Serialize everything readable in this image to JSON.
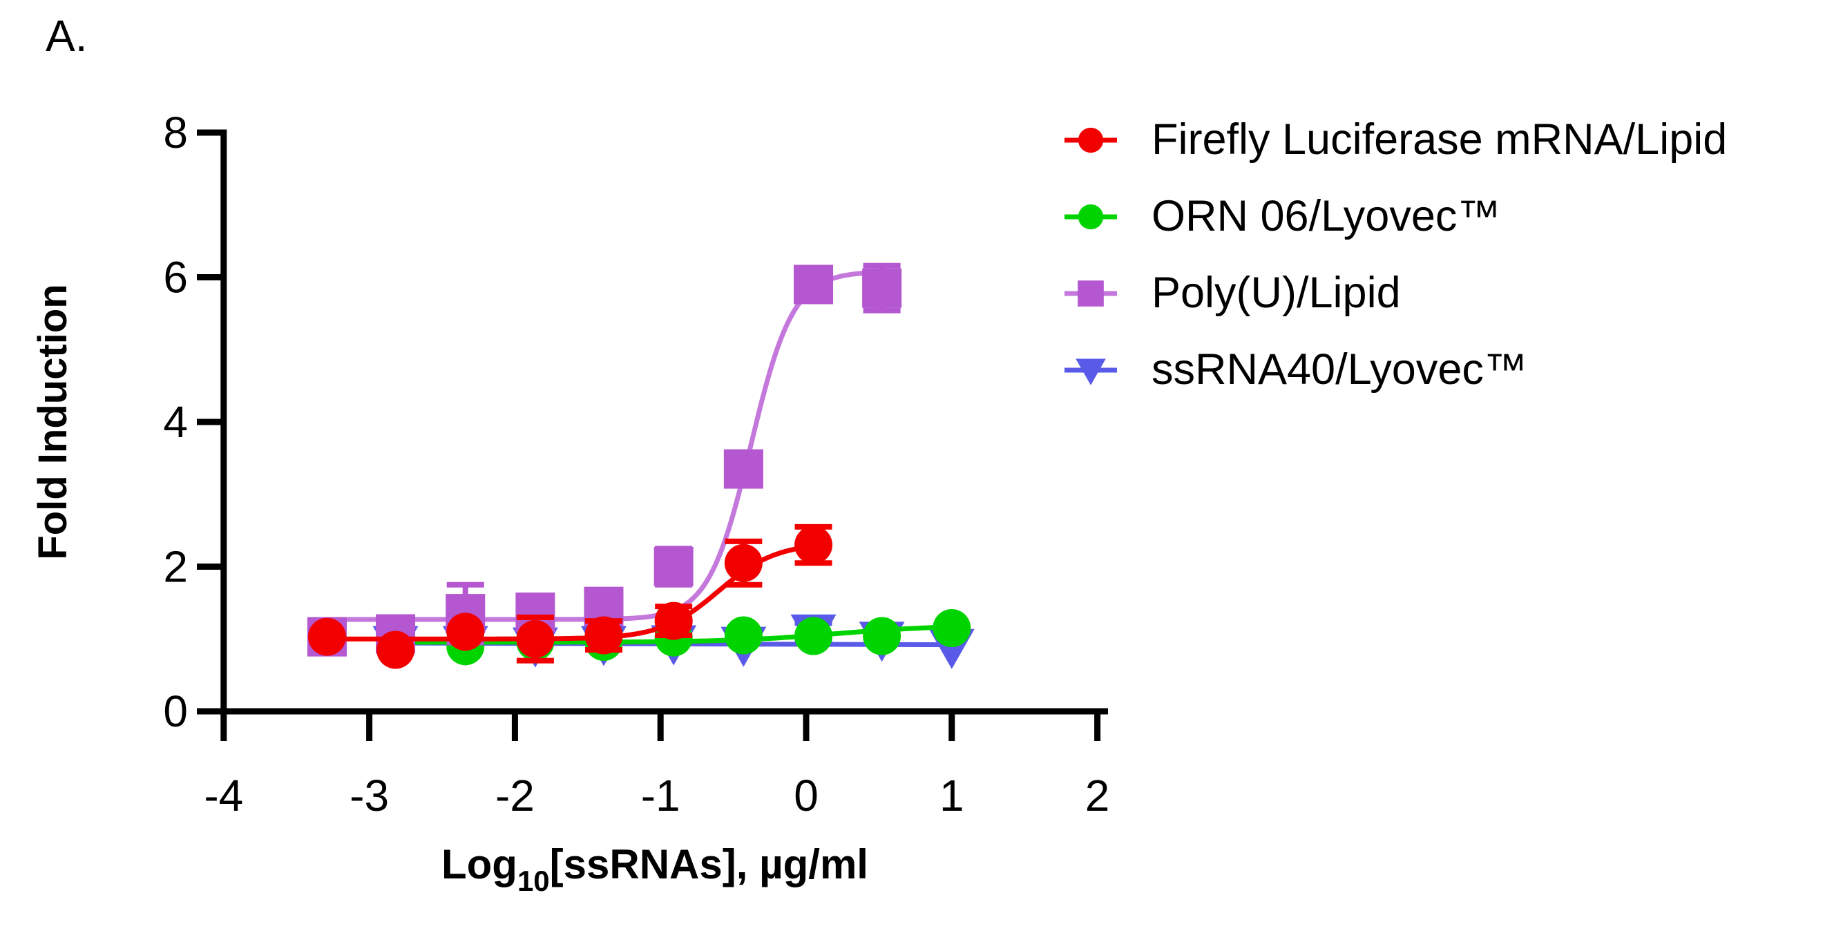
{
  "panel_label": "A.",
  "chart_data": {
    "type": "scatter",
    "title": "",
    "ylabel": "Fold Induction",
    "xlabel_parts": {
      "pre": "Log",
      "sub": "10",
      "post": "[ssRNAs], µg/ml"
    },
    "xlim": [
      -4,
      2
    ],
    "ylim": [
      0,
      8
    ],
    "xticks": [
      -4,
      -3,
      -2,
      -1,
      0,
      1,
      2
    ],
    "yticks": [
      0,
      2,
      4,
      6,
      8
    ],
    "grid": false,
    "legend_position": "right",
    "axis_color": "#000000",
    "background_color": "#ffffff",
    "series": [
      {
        "name": "Firefly Luciferase mRNA/Lipid",
        "marker": "circle",
        "color": "#f20000",
        "z": 4,
        "x": [
          -3.29,
          -2.82,
          -2.34,
          -1.86,
          -1.39,
          -0.91,
          -0.43,
          0.05
        ],
        "y": [
          1.03,
          0.85,
          1.1,
          1.0,
          1.05,
          1.25,
          2.05,
          2.3
        ],
        "err": [
          0,
          0,
          0,
          0.3,
          0.2,
          0.2,
          0.3,
          0.25
        ],
        "fit": {
          "type": "sigmoid",
          "bottom": 1.0,
          "top": 2.33,
          "logec50": -0.6,
          "hill": 2.2,
          "range": [
            -3.32,
            0.07
          ]
        }
      },
      {
        "name": "ORN 06/Lyovec™",
        "marker": "circle",
        "color": "#00d400",
        "z": 2,
        "x": [
          -2.82,
          -2.34,
          -1.86,
          -1.39,
          -0.91,
          -0.43,
          0.05,
          0.52,
          1.0
        ],
        "y": [
          0.96,
          0.9,
          0.96,
          0.96,
          1.02,
          1.05,
          1.04,
          1.04,
          1.15
        ],
        "err": [
          0,
          0,
          0,
          0,
          0,
          0,
          0,
          0,
          0
        ],
        "fit": {
          "type": "sigmoid",
          "bottom": 0.955,
          "top": 1.19,
          "logec50": 0.2,
          "hill": 1.2,
          "range": [
            -2.86,
            1.02
          ]
        }
      },
      {
        "name": "Poly(U)/Lipid",
        "marker": "square",
        "color": "#b457d0",
        "line_color": "#c478dc",
        "z": 3,
        "x": [
          -3.29,
          -2.82,
          -2.34,
          -1.86,
          -1.39,
          -0.91,
          -0.43,
          0.05,
          0.52
        ],
        "y": [
          1.03,
          1.07,
          1.35,
          1.37,
          1.45,
          2.0,
          3.35,
          5.9,
          5.85
        ],
        "err": [
          0,
          0,
          0.4,
          0,
          0,
          0.25,
          0,
          0,
          0.31
        ],
        "fit": {
          "type": "sigmoid",
          "bottom": 1.27,
          "top": 6.08,
          "logec50": -0.38,
          "hill": 3.0,
          "range": [
            -3.32,
            0.54
          ]
        }
      },
      {
        "name": "ssRNA40/Lyovec™",
        "marker": "triangle-down",
        "color": "#5a5ae8",
        "z": 1,
        "x": [
          -2.82,
          -2.34,
          -1.86,
          -1.39,
          -0.91,
          -0.43,
          0.05,
          0.52,
          1.0
        ],
        "y": [
          0.94,
          0.94,
          0.92,
          0.94,
          0.95,
          0.93,
          1.1,
          1.0,
          0.9
        ],
        "err": [
          0,
          0,
          0,
          0,
          0,
          0,
          0.12,
          0,
          0
        ],
        "fit": {
          "type": "line",
          "points": [
            [
              -2.86,
              0.945
            ],
            [
              1.02,
              0.92
            ]
          ]
        }
      }
    ]
  }
}
